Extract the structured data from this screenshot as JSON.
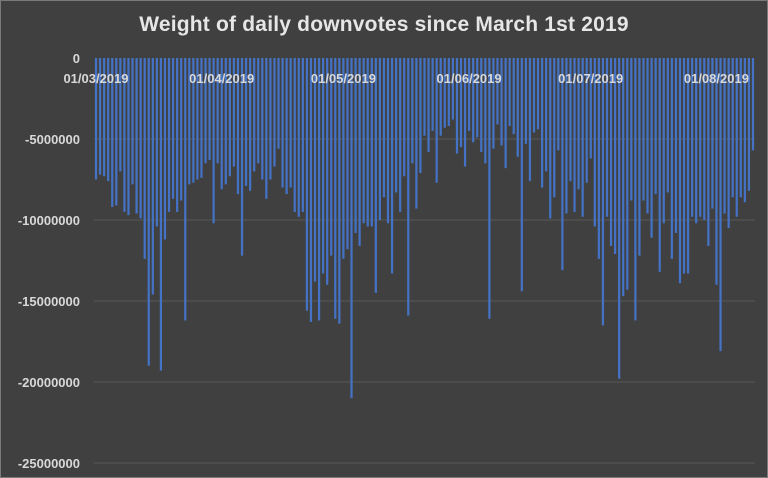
{
  "chart_data": {
    "type": "bar",
    "title": "Weight of daily downvotes since March 1st 2019",
    "xlabel": "",
    "ylabel": "",
    "ylim": [
      -25000000,
      0
    ],
    "yticks": [
      0,
      -5000000,
      -10000000,
      -15000000,
      -20000000,
      -25000000
    ],
    "ytick_labels": [
      "0",
      "-5000000",
      "-10000000",
      "-15000000",
      "-20000000",
      "-25000000"
    ],
    "x_tick_labels": [
      {
        "label": "01/03/2019",
        "day_index": 0
      },
      {
        "label": "01/04/2019",
        "day_index": 31
      },
      {
        "label": "01/05/2019",
        "day_index": 61
      },
      {
        "label": "01/06/2019",
        "day_index": 92
      },
      {
        "label": "01/07/2019",
        "day_index": 122
      },
      {
        "label": "01/08/2019",
        "day_index": 153
      }
    ],
    "grid": true,
    "color": "#4472C4",
    "values": [
      -7500000,
      -7200000,
      -7300000,
      -7600000,
      -9200000,
      -9100000,
      -7000000,
      -9500000,
      -9700000,
      -7800000,
      -9600000,
      -9900000,
      -12400000,
      -19000000,
      -14600000,
      -10400000,
      -19300000,
      -11200000,
      -9500000,
      -8700000,
      -9500000,
      -8800000,
      -16200000,
      -7800000,
      -7700000,
      -7500000,
      -7400000,
      -6500000,
      -6300000,
      -10200000,
      -6500000,
      -8100000,
      -7800000,
      -7300000,
      -6700000,
      -8400000,
      -12200000,
      -7900000,
      -8200000,
      -7000000,
      -6500000,
      -7500000,
      -8700000,
      -7500000,
      -6700000,
      -5600000,
      -8000000,
      -8400000,
      -8000000,
      -9500000,
      -9800000,
      -9500000,
      -15600000,
      -16300000,
      -13800000,
      -16200000,
      -13300000,
      -14000000,
      -12200000,
      -16100000,
      -16400000,
      -12400000,
      -11800000,
      -21000000,
      -10800000,
      -11600000,
      -10200000,
      -10400000,
      -10400000,
      -14500000,
      -10000000,
      -8600000,
      -10200000,
      -13300000,
      -8300000,
      -9500000,
      -7300000,
      -15900000,
      -6500000,
      -9300000,
      -7100000,
      -4800000,
      -5800000,
      -4500000,
      -7700000,
      -4800000,
      -4300000,
      -4200000,
      -3800000,
      -5900000,
      -5500000,
      -6700000,
      -4500000,
      -5200000,
      -4900000,
      -5800000,
      -6500000,
      -16100000,
      -5600000,
      -4100000,
      -5400000,
      -6800000,
      -4200000,
      -4700000,
      -6100000,
      -14400000,
      -5300000,
      -7600000,
      -4600000,
      -4400000,
      -8000000,
      -7000000,
      -9900000,
      -8600000,
      -5700000,
      -13100000,
      -9600000,
      -7600000,
      -9500000,
      -8100000,
      -9800000,
      -7700000,
      -6200000,
      -10400000,
      -12400000,
      -16500000,
      -9800000,
      -11600000,
      -12100000,
      -19800000,
      -14700000,
      -14300000,
      -8800000,
      -16200000,
      -12200000,
      -8800000,
      -9600000,
      -11100000,
      -8400000,
      -13200000,
      -10200000,
      -8300000,
      -12400000,
      -10800000,
      -13900000,
      -13300000,
      -13300000,
      -9800000,
      -10200000,
      -9800000,
      -10000000,
      -11600000,
      -9300000,
      -14000000,
      -18100000,
      -9600000,
      -10500000,
      -8600000,
      -9800000,
      -8600000,
      -8900000,
      -8200000,
      -5700000
    ]
  }
}
